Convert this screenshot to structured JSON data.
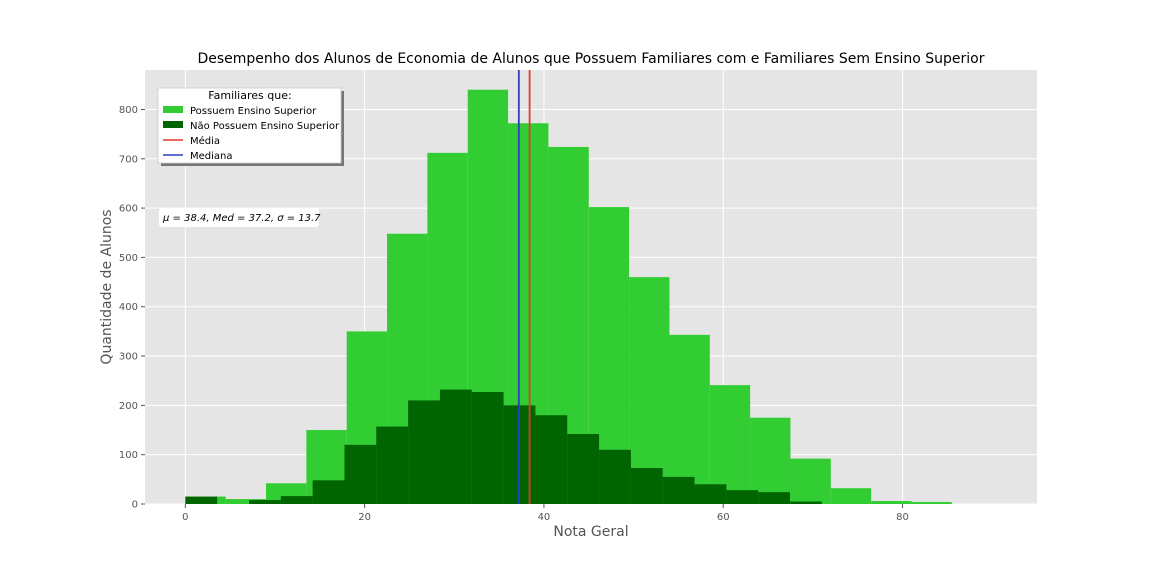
{
  "chart_data": {
    "type": "bar",
    "title": "Desempenho dos Alunos de Economia de Alunos que Possuem Familiares com e Familiares Sem Ensino Superior",
    "xlabel": "Nota Geral",
    "ylabel": "Quantidade de Alunos",
    "xlim": [
      -4.5,
      95
    ],
    "ylim": [
      0,
      880
    ],
    "xticks": [
      0,
      20,
      40,
      60,
      80
    ],
    "yticks": [
      0,
      100,
      200,
      300,
      400,
      500,
      600,
      700,
      800
    ],
    "grid": true,
    "series": [
      {
        "name": "Possuem Ensino Superior",
        "color": "#32cd32",
        "bin_edges": [
          0,
          4.5,
          9,
          13.5,
          18,
          22.5,
          27,
          31.5,
          36,
          40.5,
          45,
          49.5,
          54,
          58.5,
          63,
          67.5,
          72,
          76.5,
          81,
          85.5
        ],
        "counts": [
          15,
          10,
          42,
          150,
          350,
          548,
          712,
          840,
          772,
          724,
          602,
          460,
          343,
          241,
          175,
          92,
          32,
          6,
          4
        ]
      },
      {
        "name": "Não Possuem Ensino Superior",
        "color": "#006400",
        "bin_edges": [
          0,
          3.55,
          7.1,
          10.65,
          14.2,
          17.75,
          21.3,
          24.85,
          28.4,
          31.95,
          35.5,
          39.05,
          42.6,
          46.15,
          49.7,
          53.25,
          56.8,
          60.35,
          63.9,
          67.45,
          71
        ],
        "counts": [
          15,
          0,
          8,
          16,
          48,
          120,
          157,
          210,
          232,
          227,
          200,
          180,
          142,
          110,
          73,
          55,
          40,
          28,
          24,
          5
        ]
      }
    ],
    "lines": [
      {
        "name": "Média",
        "x": 38.4,
        "color": "#e8372b"
      },
      {
        "name": "Mediana",
        "x": 37.2,
        "color": "#2b3fbf"
      }
    ],
    "legend": {
      "title": "Familiares que:",
      "placement": "top-left",
      "entries": [
        "Possuem Ensino Superior",
        "Não Possuem Ensino Superior",
        "Média",
        "Mediana"
      ]
    },
    "annotation": {
      "text": "μ = 38.4,  Med = 37.2,  σ = 13.7",
      "placement": "upper-left"
    }
  }
}
